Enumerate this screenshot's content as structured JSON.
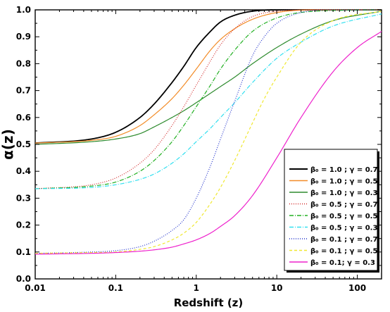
{
  "chart_data": {
    "type": "line",
    "xlabel": "Redshift (z)",
    "ylabel": "α(z)",
    "x_scale": "log",
    "xlim": [
      0.01,
      200
    ],
    "ylim": [
      0.0,
      1.0
    ],
    "grid": false,
    "legend_position": "bottom-right",
    "x_ticks": [
      0.01,
      0.1,
      1,
      10,
      100
    ],
    "x_tick_labels": [
      "0.01",
      "0.1",
      "1",
      "10",
      "100"
    ],
    "y_ticks": [
      0.0,
      0.1,
      0.2,
      0.3,
      0.4,
      0.5,
      0.6,
      0.7,
      0.8,
      0.9,
      1.0
    ],
    "y_tick_labels": [
      "0.0",
      "0.1",
      "0.2",
      "0.3",
      "0.4",
      "0.5",
      "0.6",
      "0.7",
      "0.8",
      "0.9",
      "1.0"
    ],
    "series": [
      {
        "name": "β₀ = 1.0 ; γ = 0.7",
        "color": "#000000",
        "dash": "solid",
        "width": 1.8,
        "x": [
          0.01,
          0.05,
          0.1,
          0.2,
          0.3,
          0.5,
          0.7,
          1,
          1.5,
          2,
          3,
          5,
          10,
          30,
          200
        ],
        "y": [
          0.505,
          0.52,
          0.545,
          0.6,
          0.65,
          0.73,
          0.79,
          0.86,
          0.92,
          0.955,
          0.98,
          0.995,
          1.0,
          1.0,
          1.0
        ]
      },
      {
        "name": "β₀ = 1.0 ; γ = 0.5",
        "color": "#f28c28",
        "dash": "solid",
        "width": 1.2,
        "x": [
          0.01,
          0.05,
          0.1,
          0.2,
          0.3,
          0.5,
          0.7,
          1,
          1.5,
          2,
          3,
          5,
          10,
          30,
          200
        ],
        "y": [
          0.505,
          0.515,
          0.53,
          0.57,
          0.61,
          0.67,
          0.72,
          0.78,
          0.85,
          0.89,
          0.93,
          0.965,
          0.99,
          1.0,
          1.0
        ]
      },
      {
        "name": "β₀ = 1.0 ; γ = 0.3",
        "color": "#2e8b2e",
        "dash": "solid",
        "width": 1.2,
        "x": [
          0.01,
          0.05,
          0.1,
          0.2,
          0.3,
          0.5,
          0.7,
          1,
          1.5,
          2,
          3,
          5,
          10,
          20,
          50,
          200
        ],
        "y": [
          0.5,
          0.51,
          0.52,
          0.54,
          0.565,
          0.6,
          0.625,
          0.655,
          0.69,
          0.715,
          0.75,
          0.8,
          0.86,
          0.91,
          0.96,
          0.995
        ]
      },
      {
        "name": "β₀ = 0.5 ; γ = 0.7",
        "color": "#d22b2b",
        "dash": "1,2",
        "width": 1.2,
        "x": [
          0.01,
          0.05,
          0.1,
          0.2,
          0.3,
          0.5,
          0.7,
          1,
          1.5,
          2,
          3,
          5,
          10,
          30,
          200
        ],
        "y": [
          0.335,
          0.35,
          0.375,
          0.43,
          0.48,
          0.57,
          0.64,
          0.72,
          0.81,
          0.87,
          0.93,
          0.975,
          0.995,
          1.0,
          1.0
        ]
      },
      {
        "name": "β₀ = 0.5 ; γ = 0.5",
        "color": "#22b022",
        "dash": "6,2,1,2",
        "width": 1.2,
        "x": [
          0.01,
          0.05,
          0.1,
          0.2,
          0.3,
          0.5,
          0.7,
          1,
          1.5,
          2,
          3,
          5,
          10,
          30,
          200
        ],
        "y": [
          0.335,
          0.345,
          0.36,
          0.4,
          0.44,
          0.51,
          0.57,
          0.64,
          0.72,
          0.78,
          0.85,
          0.92,
          0.97,
          0.995,
          1.0
        ]
      },
      {
        "name": "β₀ = 0.5 ; γ = 0.3",
        "color": "#33e0f0",
        "dash": "6,2,1,2",
        "width": 1.2,
        "x": [
          0.01,
          0.05,
          0.1,
          0.2,
          0.3,
          0.5,
          0.7,
          1,
          1.5,
          2,
          3,
          5,
          10,
          20,
          50,
          200
        ],
        "y": [
          0.335,
          0.34,
          0.35,
          0.37,
          0.39,
          0.43,
          0.465,
          0.51,
          0.56,
          0.6,
          0.655,
          0.73,
          0.82,
          0.88,
          0.94,
          0.985
        ]
      },
      {
        "name": "β₀ = 0.1 ; γ = 0.7",
        "color": "#2233cc",
        "dash": "1,2",
        "width": 1.2,
        "x": [
          0.01,
          0.05,
          0.1,
          0.2,
          0.3,
          0.5,
          0.7,
          1,
          1.5,
          2,
          3,
          5,
          7,
          10,
          20,
          50,
          200
        ],
        "y": [
          0.095,
          0.1,
          0.105,
          0.12,
          0.14,
          0.18,
          0.22,
          0.3,
          0.42,
          0.52,
          0.66,
          0.83,
          0.9,
          0.95,
          0.99,
          1.0,
          1.0
        ]
      },
      {
        "name": "β₀ = 0.1 ; γ = 0.5",
        "color": "#f0e830",
        "dash": "4,3",
        "width": 1.2,
        "x": [
          0.01,
          0.05,
          0.1,
          0.2,
          0.3,
          0.5,
          0.7,
          1,
          1.5,
          2,
          3,
          5,
          7,
          10,
          20,
          50,
          200
        ],
        "y": [
          0.095,
          0.098,
          0.1,
          0.11,
          0.12,
          0.145,
          0.17,
          0.21,
          0.28,
          0.34,
          0.44,
          0.58,
          0.67,
          0.75,
          0.88,
          0.96,
          0.995
        ]
      },
      {
        "name": "β₀ = 0.1; γ = 0.3",
        "color": "#ee22cc",
        "dash": "solid",
        "width": 1.2,
        "x": [
          0.01,
          0.05,
          0.1,
          0.2,
          0.3,
          0.5,
          0.7,
          1,
          1.5,
          2,
          3,
          5,
          10,
          20,
          50,
          100,
          200
        ],
        "y": [
          0.092,
          0.095,
          0.098,
          0.103,
          0.108,
          0.118,
          0.13,
          0.145,
          0.17,
          0.195,
          0.235,
          0.31,
          0.45,
          0.6,
          0.77,
          0.86,
          0.92
        ]
      }
    ]
  }
}
